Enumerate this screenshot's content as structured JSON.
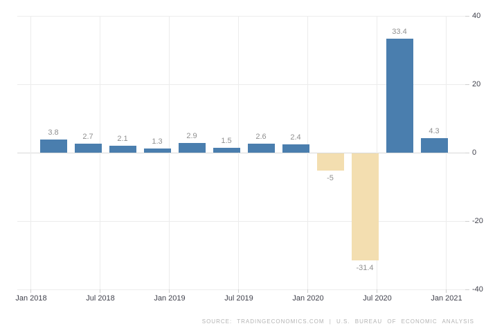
{
  "chart_data": {
    "type": "bar",
    "values": [
      3.8,
      2.7,
      2.1,
      1.3,
      2.9,
      1.5,
      2.6,
      2.4,
      -5,
      -31.4,
      33.4,
      4.3
    ],
    "bar_labels": [
      "3.8",
      "2.7",
      "2.1",
      "1.3",
      "2.9",
      "1.5",
      "2.6",
      "2.4",
      "-5",
      "-31.4",
      "33.4",
      "4.3"
    ],
    "x_tick_labels": [
      "Jan 2018",
      "Jul 2018",
      "Jan 2019",
      "Jul 2019",
      "Jan 2020",
      "Jul 2020",
      "Jan 2021"
    ],
    "y_ticks": [
      40,
      20,
      0,
      -20,
      -40
    ],
    "ylim": [
      -40,
      40
    ],
    "title": "",
    "xlabel": "",
    "ylabel": "",
    "grid": true,
    "legend_position": "none",
    "positive_color": "#4a7eae",
    "negative_color": "#f3deb0"
  },
  "colors": {
    "background": "#ffffff",
    "gridline": "#ececec",
    "zero_line": "#d9d9d9",
    "axis_label": "#3f404b",
    "value_label": "#8f8f8f",
    "source_text": "#b3b3b3"
  },
  "footer": {
    "source_text": "SOURCE: TRADINGECONOMICS.COM | U.S. BUREAU OF ECONOMIC ANALYSIS"
  }
}
